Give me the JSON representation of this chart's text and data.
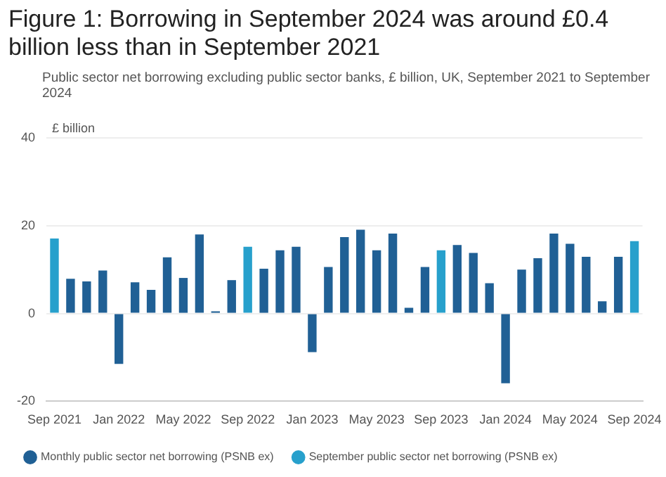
{
  "chart_data": {
    "type": "bar",
    "title": "Figure 1: Borrowing in September 2024 was around £0.4 billion less than in September 2021",
    "subtitle": "Public sector net borrowing excluding public sector banks, £ billion, UK, September 2021 to September 2024",
    "ylabel": "£ billion",
    "categories": [
      "Sep 2021",
      null,
      null,
      null,
      "Jan 2022",
      null,
      null,
      null,
      "May 2022",
      null,
      null,
      null,
      "Sep 2022",
      null,
      null,
      null,
      "Jan 2023",
      null,
      null,
      null,
      "May 2023",
      null,
      null,
      null,
      "Sep 2023",
      null,
      null,
      null,
      "Jan 2024",
      null,
      null,
      null,
      "May 2024",
      null,
      null,
      null,
      "Sep 2024"
    ],
    "series": [
      {
        "name": "Monthly public sector net borrowing (PSNB ex)",
        "color": "#206095",
        "values": [
          null,
          7.9,
          7.3,
          9.8,
          -11.5,
          7.1,
          5.4,
          12.8,
          8.1,
          18,
          0.5,
          7.6,
          null,
          10.2,
          14.4,
          15.2,
          -8.8,
          10.6,
          17.4,
          19.1,
          14.4,
          18.2,
          1.3,
          10.6,
          null,
          15.6,
          13.8,
          6.9,
          -15.9,
          10,
          12.6,
          18.2,
          15.9,
          12.9,
          2.8,
          12.9,
          null
        ]
      },
      {
        "name": "September public sector net borrowing (PSNB ex)",
        "color": "#27a0cc",
        "values": [
          17.1,
          null,
          null,
          null,
          null,
          null,
          null,
          null,
          null,
          null,
          null,
          null,
          15.2,
          null,
          null,
          null,
          null,
          null,
          null,
          null,
          null,
          null,
          null,
          null,
          14.4,
          null,
          null,
          null,
          null,
          null,
          null,
          null,
          null,
          null,
          null,
          null,
          16.5
        ]
      }
    ],
    "ylim": [
      -20,
      40
    ],
    "yticks": [
      -20,
      0,
      20,
      40
    ],
    "grid": "y",
    "legend": "bottom"
  }
}
